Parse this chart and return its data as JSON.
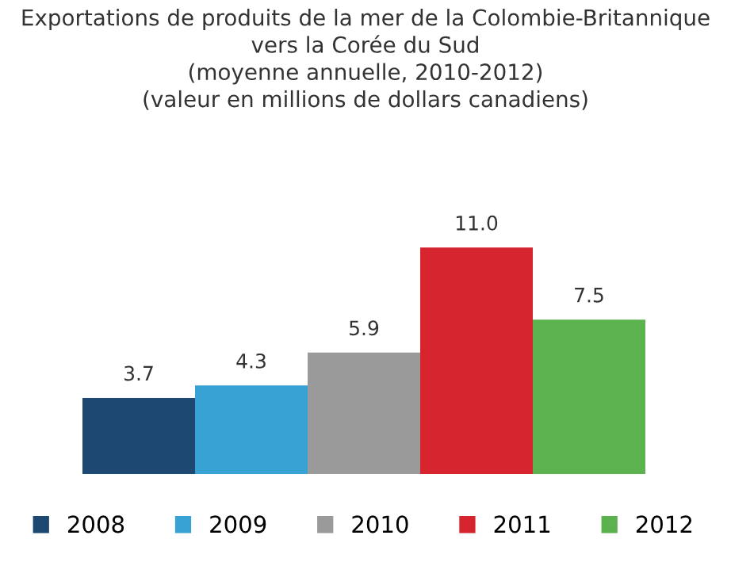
{
  "chart_data": {
    "type": "bar",
    "title": "Exportations de produits de la mer de la Colombie-Britannique\nvers la Corée du Sud\n(moyenne annuelle, 2010-2012)\n(valeur en millions de dollars canadiens)",
    "categories": [
      null
    ],
    "series": [
      {
        "name": "2008",
        "color": "#1d4871",
        "values": [
          3.7
        ],
        "value_labels": [
          "3.7"
        ]
      },
      {
        "name": "2009",
        "color": "#37a2d3",
        "values": [
          4.3
        ],
        "value_labels": [
          "4.3"
        ]
      },
      {
        "name": "2010",
        "color": "#9a9a9a",
        "values": [
          5.9
        ],
        "value_labels": [
          "5.9"
        ]
      },
      {
        "name": "2011",
        "color": "#d6252e",
        "values": [
          11.0
        ],
        "value_labels": [
          "11.0"
        ]
      },
      {
        "name": "2012",
        "color": "#5bb24f",
        "values": [
          7.5
        ],
        "value_labels": [
          "7.5"
        ]
      }
    ],
    "legend": "bottom",
    "grid": false
  }
}
